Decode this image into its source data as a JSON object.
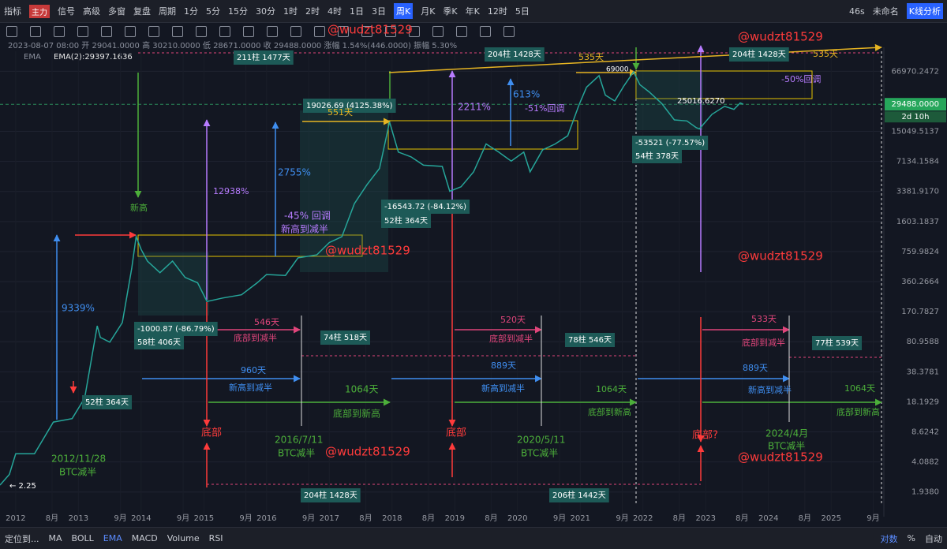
{
  "toolbar": {
    "left": [
      "指标",
      "主力",
      "信号",
      "高级",
      "多窗",
      "复盘",
      "周期",
      "1分",
      "5分",
      "15分",
      "30分",
      "1时",
      "2时",
      "4时",
      "1日",
      "3日",
      "周K",
      "月K",
      "季K",
      "年K",
      "12时",
      "5日"
    ],
    "right": [
      "46s",
      "未命名",
      "K线分析"
    ]
  },
  "info": {
    "ohlc": "2023-08-07 08:00  开 29041.0000  高 30210.0000  低 28671.0000  收 29488.0000  涨幅 1.54%(446.0000)  振幅 5.30%",
    "ema_name": "EMA",
    "ema_value": "EMA(2):29397.1636"
  },
  "bottom": {
    "left": [
      "定位到...",
      "MA",
      "BOLL",
      "EMA",
      "MACD",
      "Volume",
      "RSI"
    ],
    "right": [
      "对数",
      "%",
      "自动"
    ]
  },
  "chart_data": {
    "type": "line",
    "log_scale": true,
    "series": [
      {
        "name": "BTC",
        "color": "#26a69a",
        "x": [
          2011.75,
          2011.9,
          2012.0,
          2012.3,
          2012.6,
          2012.9,
          2013.1,
          2013.3,
          2013.35,
          2013.5,
          2013.7,
          2013.85,
          2013.92,
          2014.0,
          2014.1,
          2014.3,
          2014.5,
          2014.7,
          2014.9,
          2015.05,
          2015.3,
          2015.6,
          2015.85,
          2016.0,
          2016.3,
          2016.5,
          2016.8,
          2017.0,
          2017.2,
          2017.4,
          2017.6,
          2017.8,
          2017.96,
          2018.1,
          2018.3,
          2018.5,
          2018.8,
          2018.92,
          2019.1,
          2019.3,
          2019.5,
          2019.7,
          2019.9,
          2020.1,
          2020.2,
          2020.4,
          2020.6,
          2020.8,
          2020.98,
          2021.1,
          2021.3,
          2021.4,
          2021.55,
          2021.7,
          2021.85,
          2021.95,
          2022.1,
          2022.3,
          2022.5,
          2022.7,
          2022.85,
          2022.9,
          2023.1,
          2023.3,
          2023.45,
          2023.55,
          2023.6
        ],
        "values": [
          2.3,
          3,
          5,
          5,
          11,
          12,
          20,
          120,
          90,
          80,
          130,
          500,
          1100,
          800,
          600,
          450,
          600,
          400,
          350,
          220,
          240,
          260,
          350,
          430,
          420,
          650,
          700,
          950,
          1100,
          2500,
          4000,
          6000,
          19000,
          9000,
          8000,
          6500,
          6300,
          3400,
          3800,
          5500,
          11000,
          9000,
          7200,
          9000,
          5500,
          9500,
          11000,
          13500,
          29000,
          45000,
          60000,
          37000,
          32000,
          47000,
          66000,
          48000,
          40000,
          30000,
          20000,
          19500,
          16500,
          16000,
          23000,
          28000,
          26000,
          30500,
          29500
        ]
      }
    ],
    "xlim": [
      2011.75,
      2025.84
    ],
    "xticks": [
      2012,
      {
        "value": 2012.58,
        "label": "8月"
      },
      2013,
      {
        "value": 2013.67,
        "label": "9月"
      },
      2014,
      {
        "value": 2014.67,
        "label": "9月"
      },
      2015,
      {
        "value": 2015.67,
        "label": "9月"
      },
      2016,
      {
        "value": 2016.67,
        "label": "9月"
      },
      2017,
      {
        "value": 2017.58,
        "label": "8月"
      },
      2018,
      {
        "value": 2018.58,
        "label": "8月"
      },
      2019,
      {
        "value": 2019.58,
        "label": "8月"
      },
      2020,
      {
        "value": 2020.67,
        "label": "9月"
      },
      2021,
      {
        "value": 2021.67,
        "label": "9月"
      },
      2022,
      {
        "value": 2022.58,
        "label": "8月"
      },
      2023,
      {
        "value": 2023.58,
        "label": "8月"
      },
      2024,
      {
        "value": 2024.58,
        "label": "8月"
      },
      2025,
      {
        "value": 2025.67,
        "label": "9月"
      }
    ],
    "ylim": [
      1.05,
      110000
    ],
    "yticks": [
      66970.2472,
      15049.5137,
      7134.1584,
      {
        "value": 3381.917,
        "label": "3381.9170"
      },
      1603.1837,
      759.9824,
      360.2664,
      170.7827,
      80.9588,
      38.3781,
      18.1929,
      8.6242,
      4.0882,
      {
        "value": 1.938,
        "label": "1.9380"
      }
    ],
    "last_price": 29488,
    "last_price_label": "29488.0000",
    "countdown": "2d 10h",
    "annotations": [
      "@wudzt81529",
      "@wudzt81529",
      "@wudzt81529",
      "@wudzt81529",
      "@wudzt81529",
      "@wudzt81529",
      "211柱 1477天",
      "204柱 1428天",
      "204柱 1428天",
      "535天",
      "535天",
      "69000",
      "-50%回调",
      "613%",
      "-51%回调",
      "19026.69 (4125.38%)",
      "551天",
      "2211%",
      "25016.6270",
      "-53521 (-77.57%)",
      "54柱 378天",
      "2755%",
      "12938%",
      "-16543.72 (-84.12%)",
      "52柱 364天",
      "新高",
      "-45% 回调",
      "新高到减半",
      "9339%",
      "-1000.87 (-86.79%)",
      "58柱 406天",
      "546天",
      "底部到减半",
      "74柱 518天",
      "520天",
      "底部到减半",
      "78柱 546天",
      "533天",
      "底部到减半",
      "77柱 539天",
      "960天",
      "新高到减半",
      "889天",
      "新高到减半",
      "889天",
      "新高到减半",
      "1064天",
      "底部到新高",
      "1064天",
      "底部到新高",
      "1064天",
      "底部到新高",
      "52柱 364天",
      "底部",
      "底部",
      "底部?",
      "2016/7/11",
      "BTC减半",
      "2020/5/11",
      "BTC减半",
      "2024/4月",
      "BTC减半",
      "2012/11/28",
      "BTC减半",
      "204柱 1428天",
      "206柱 1442天",
      "← 2.25"
    ]
  }
}
